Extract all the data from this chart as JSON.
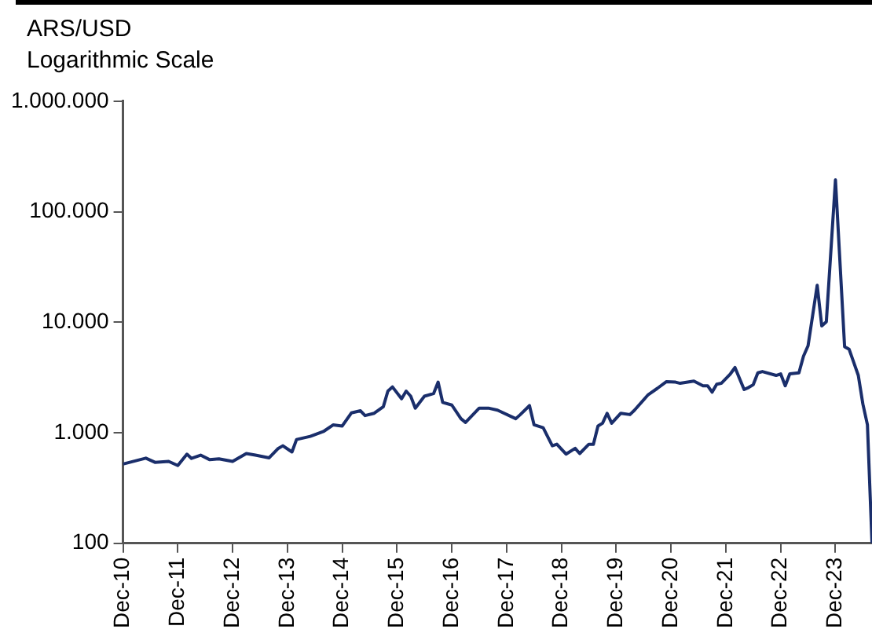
{
  "chart_data": {
    "type": "line",
    "title": "ARS/USD",
    "subtitle": "Logarithmic Scale",
    "log": "y",
    "grid": false,
    "legend": false,
    "marker": "none",
    "line_style": "solid",
    "xlim": [
      "2010-12",
      "2024-08"
    ],
    "xticks": [
      {
        "value": "2010-12",
        "label": "Dec-10"
      },
      {
        "value": "2011-12",
        "label": "Dec-11"
      },
      {
        "value": "2012-12",
        "label": "Dec-12"
      },
      {
        "value": "2013-12",
        "label": "Dec-13"
      },
      {
        "value": "2014-12",
        "label": "Dec-14"
      },
      {
        "value": "2015-12",
        "label": "Dec-15"
      },
      {
        "value": "2016-12",
        "label": "Dec-16"
      },
      {
        "value": "2017-12",
        "label": "Dec-17"
      },
      {
        "value": "2018-12",
        "label": "Dec-18"
      },
      {
        "value": "2019-12",
        "label": "Dec-19"
      },
      {
        "value": "2020-12",
        "label": "Dec-20"
      },
      {
        "value": "2021-12",
        "label": "Dec-21"
      },
      {
        "value": "2022-12",
        "label": "Dec-22"
      },
      {
        "value": "2023-12",
        "label": "Dec-23"
      }
    ],
    "ylim": [
      100,
      1000000
    ],
    "yticks": [
      100,
      {
        "value": 1000,
        "label": "1.000"
      },
      {
        "value": 10000,
        "label": "10.000"
      },
      {
        "value": 100000,
        "label": "100.000"
      },
      {
        "value": 1000000,
        "label": "1.000.000"
      }
    ],
    "series": [
      {
        "color": "#1a2e6b",
        "x": [
          "2010-12",
          "2011-05",
          "2011-07",
          "2011-10",
          "2011-12",
          "2012-02",
          "2012-03",
          "2012-05",
          "2012-07",
          "2012-09",
          "2012-12",
          "2013-03",
          "2013-05",
          "2013-08",
          "2013-10",
          "2013-11",
          "2014-01",
          "2014-02",
          "2014-05",
          "2014-08",
          "2014-10",
          "2014-12",
          "2015-02",
          "2015-04",
          "2015-05",
          "2015-07",
          "2015-09",
          "2015-10",
          "2015-11",
          "2016-01",
          "2016-02",
          "2016-03",
          "2016-04",
          "2016-06",
          "2016-08",
          "2016-09",
          "2016-10",
          "2016-12",
          "2017-02",
          "2017-03",
          "2017-06",
          "2017-08",
          "2017-10",
          "2018-02",
          "2018-03",
          "2018-05",
          "2018-06",
          "2018-08",
          "2018-10",
          "2018-11",
          "2019-01",
          "2019-03",
          "2019-04",
          "2019-06",
          "2019-07",
          "2019-08",
          "2019-09",
          "2019-10",
          "2019-11",
          "2020-01",
          "2020-03",
          "2020-04",
          "2020-07",
          "2020-09",
          "2020-11",
          "2021-01",
          "2021-02",
          "2021-05",
          "2021-07",
          "2021-08",
          "2021-09",
          "2021-10",
          "2021-11",
          "2022-01",
          "2022-02",
          "2022-04",
          "2022-05",
          "2022-06",
          "2022-07",
          "2022-08",
          "2022-11",
          "2022-12",
          "2023-01",
          "2023-02",
          "2023-04",
          "2023-05",
          "2023-06",
          "2023-08",
          "2023-09",
          "2023-10",
          "2023-12",
          "2024-02",
          "2024-03",
          "2024-04",
          "2024-05",
          "2024-06",
          "2024-07",
          "2024-08"
        ],
        "values": [
          521,
          589,
          540,
          550,
          505,
          640,
          586,
          627,
          570,
          580,
          550,
          648,
          627,
          593,
          722,
          762,
          670,
          868,
          927,
          1033,
          1177,
          1150,
          1510,
          1580,
          1430,
          1500,
          1720,
          2380,
          2600,
          2030,
          2380,
          2140,
          1670,
          2140,
          2260,
          2870,
          1880,
          1780,
          1340,
          1240,
          1670,
          1670,
          1600,
          1340,
          1460,
          1760,
          1180,
          1110,
          762,
          787,
          641,
          722,
          648,
          787,
          787,
          1150,
          1220,
          1500,
          1220,
          1500,
          1460,
          1600,
          2210,
          2520,
          2900,
          2870,
          2800,
          2930,
          2660,
          2660,
          2330,
          2750,
          2800,
          3410,
          3890,
          2460,
          2570,
          2720,
          3480,
          3580,
          3300,
          3410,
          2660,
          3410,
          3480,
          4930,
          6130,
          21600,
          9270,
          10100,
          194000,
          6000,
          5680,
          4330,
          3300,
          1820,
          1180,
          100
        ]
      }
    ]
  }
}
